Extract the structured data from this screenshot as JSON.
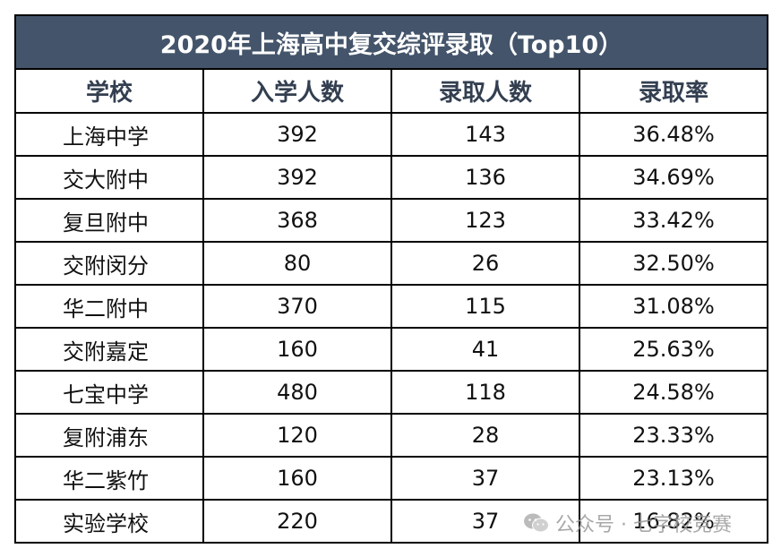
{
  "table": {
    "title": "2020年上海高中复交综评录取（Top10）",
    "headers": [
      "学校",
      "入学人数",
      "录取人数",
      "录取率"
    ],
    "rows": [
      [
        "上海中学",
        "392",
        "143",
        "36.48%"
      ],
      [
        "交大附中",
        "392",
        "136",
        "34.69%"
      ],
      [
        "复旦附中",
        "368",
        "123",
        "33.42%"
      ],
      [
        "交附闵分",
        "80",
        "26",
        "32.50%"
      ],
      [
        "华二附中",
        "370",
        "115",
        "31.08%"
      ],
      [
        "交附嘉定",
        "160",
        "41",
        "25.63%"
      ],
      [
        "七宝中学",
        "480",
        "118",
        "24.58%"
      ],
      [
        "复附浦东",
        "120",
        "28",
        "23.33%"
      ],
      [
        "华二紫竹",
        "160",
        "37",
        "23.13%"
      ],
      [
        "实验学校",
        "220",
        "37",
        "16.82%"
      ]
    ]
  },
  "watermark": {
    "text": "公众号 · 七字校竞赛",
    "icon": "wechat-icon"
  },
  "colors": {
    "title_bg": "#44546a",
    "title_text": "#ffffff",
    "header_text": "#333f50",
    "border": "#000000"
  }
}
